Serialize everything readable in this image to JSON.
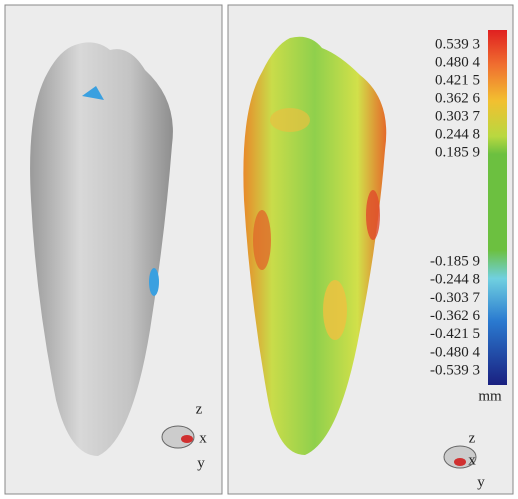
{
  "left_panel": {
    "axis_labels": [
      "z",
      "x",
      "y"
    ]
  },
  "right_panel": {
    "axis_labels": [
      "z",
      "x",
      "y"
    ],
    "legend": {
      "labels": [
        "0.539 3",
        "0.480 4",
        "0.421 5",
        "0.362 6",
        "0.303 7",
        "0.244 8",
        "0.185 9",
        "-0.185 9",
        "-0.244 8",
        "-0.303 7",
        "-0.362 6",
        "-0.421 5",
        "-0.480 4",
        "-0.539 3"
      ],
      "unit": "mm"
    }
  }
}
